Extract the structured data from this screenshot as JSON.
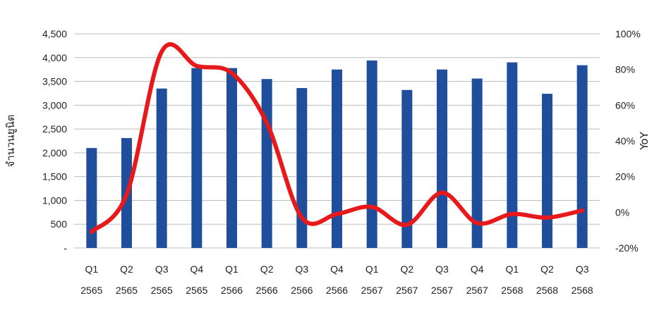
{
  "chart_data": {
    "type": "bar",
    "categories": [
      [
        "Q1",
        "2565"
      ],
      [
        "Q2",
        "2565"
      ],
      [
        "Q3",
        "2565"
      ],
      [
        "Q4",
        "2565"
      ],
      [
        "Q1",
        "2566"
      ],
      [
        "Q2",
        "2566"
      ],
      [
        "Q3",
        "2566"
      ],
      [
        "Q4",
        "2566"
      ],
      [
        "Q1",
        "2567"
      ],
      [
        "Q2",
        "2567"
      ],
      [
        "Q3",
        "2567"
      ],
      [
        "Q4",
        "2567"
      ],
      [
        "Q1",
        "2568"
      ],
      [
        "Q2",
        "2568"
      ],
      [
        "Q3",
        "2568"
      ]
    ],
    "series": [
      {
        "axis": "left",
        "type": "bar",
        "color": "#1f4e9c",
        "values": [
          2100,
          2310,
          3350,
          3780,
          3780,
          3550,
          3360,
          3750,
          3940,
          3320,
          3750,
          3560,
          3900,
          3240,
          3840
        ]
      },
      {
        "axis": "right",
        "type": "line",
        "color": "#e8191b",
        "values": [
          -11,
          10,
          90,
          82,
          78,
          50,
          -3,
          -1,
          3,
          -7,
          11,
          -6,
          -1,
          -3,
          1
        ]
      }
    ],
    "ylabel": "จำนวนยูนิต",
    "y2label": "YoY",
    "ylim": [
      0,
      4500
    ],
    "y2lim": [
      -20,
      100
    ],
    "yticks": [
      "-",
      "500",
      "1,000",
      "1,500",
      "2,000",
      "2,500",
      "3,000",
      "3,500",
      "4,000",
      "4,500"
    ],
    "y2ticks": [
      "-20%",
      "0%",
      "20%",
      "40%",
      "60%",
      "80%",
      "100%"
    ],
    "grid": true
  }
}
